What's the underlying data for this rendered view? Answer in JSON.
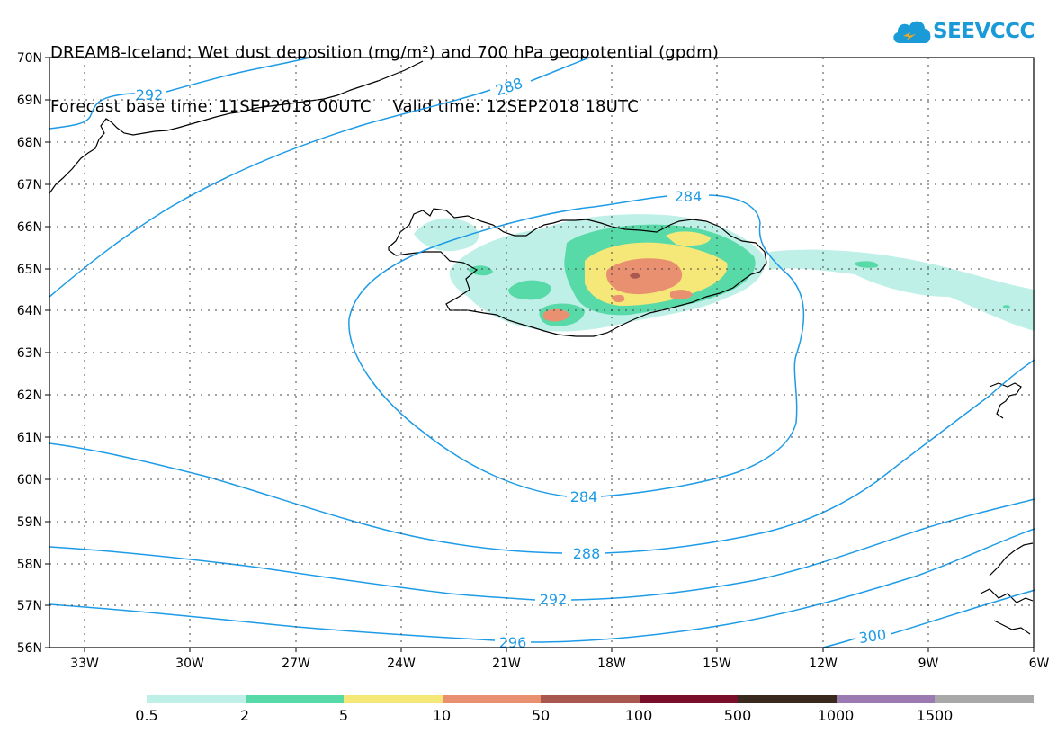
{
  "title": {
    "line1": "DREAM8-Iceland: Wet dust deposition (mg/m²) and 700 hPa geopotential (gpdm)",
    "line2": "Forecast base time: 11SEP2018 00UTC    Valid time: 12SEP2018 18UTC"
  },
  "logo": {
    "text": "SEEVCCC",
    "icon": "cloud-icon"
  },
  "axes": {
    "lat_labels": [
      "70N",
      "69N",
      "68N",
      "67N",
      "66N",
      "65N",
      "64N",
      "63N",
      "62N",
      "61N",
      "60N",
      "59N",
      "58N",
      "57N",
      "56N"
    ],
    "lon_labels": [
      "33W",
      "30W",
      "27W",
      "24W",
      "21W",
      "18W",
      "15W",
      "12W",
      "9W",
      "6W"
    ]
  },
  "contours": {
    "labels": [
      "292",
      "288",
      "284",
      "284",
      "288",
      "292",
      "296",
      "300"
    ]
  },
  "legend": {
    "labels": [
      "0.5",
      "2",
      "5",
      "10",
      "50",
      "100",
      "500",
      "1000",
      "1500"
    ],
    "colors": [
      "#bff0e8",
      "#58d9a8",
      "#f6e878",
      "#e89070",
      "#a8584e",
      "#7a0f2c",
      "#3a2a1e",
      "#9a7ab0",
      "#a8a8a8"
    ]
  },
  "colors": {
    "contour": "#1e9be6",
    "coast": "#000000"
  }
}
